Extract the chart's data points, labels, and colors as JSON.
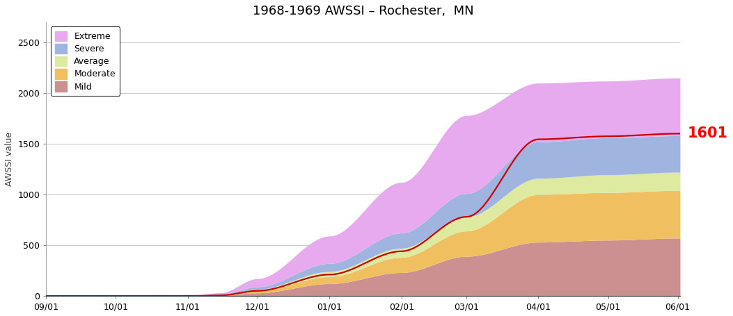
{
  "title": "1968-1969 AWSSI – Rochester,  MN",
  "ylabel": "AWSSI value",
  "ylim": [
    0,
    2700
  ],
  "yticks": [
    0,
    500,
    1000,
    1500,
    2000,
    2500
  ],
  "annotation_value": "1601",
  "annotation_color": "#ff0000",
  "colors": {
    "extreme": "#e8aaee",
    "severe": "#a0b4e0",
    "average": "#ddeaa0",
    "moderate": "#f0c060",
    "mild": "#cc9090"
  },
  "line_color": "#cc0000",
  "line_width": 1.6,
  "background_color": "#ffffff",
  "grid_color": "#cccccc",
  "n_points": 275,
  "xticklabels": [
    "09/01",
    "10/01",
    "11/01",
    "12/01",
    "01/01",
    "02/01",
    "03/01",
    "04/01",
    "05/01",
    "06/01"
  ],
  "xtick_positions": [
    0,
    30,
    61,
    91,
    122,
    153,
    181,
    212,
    242,
    272
  ]
}
